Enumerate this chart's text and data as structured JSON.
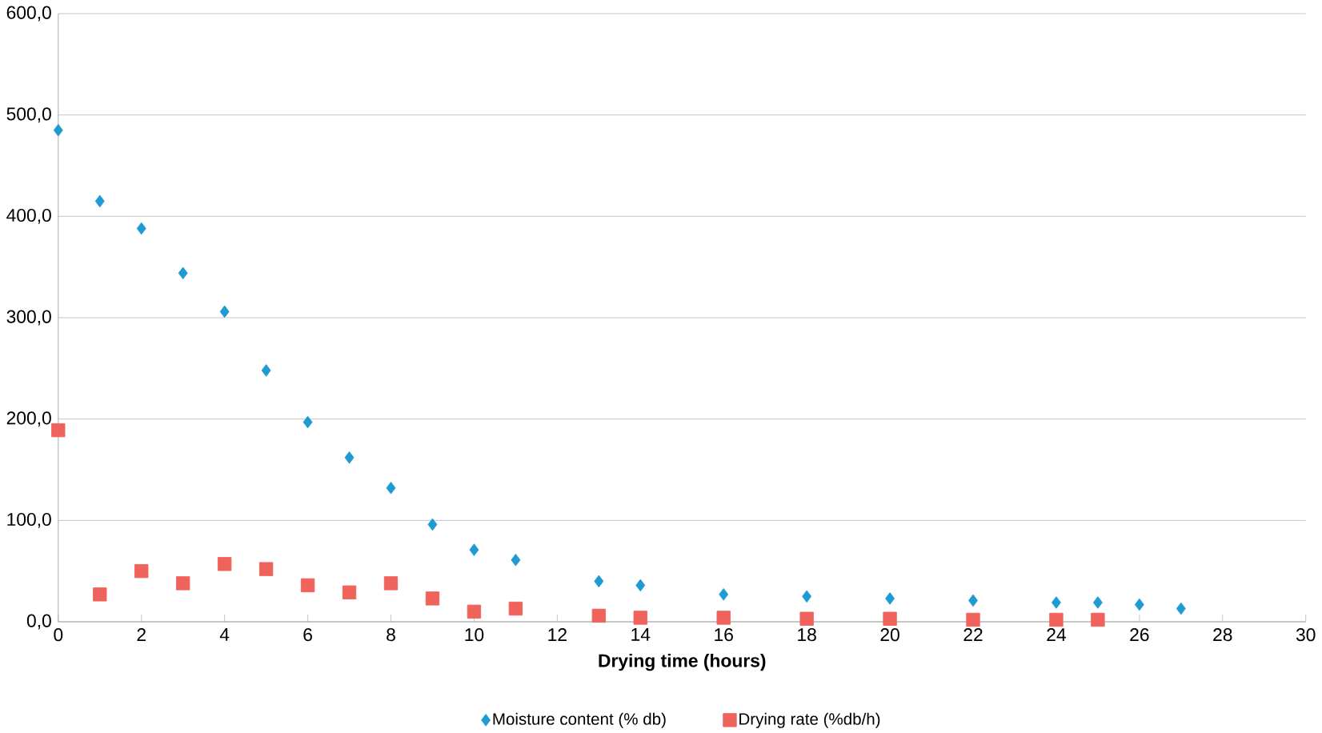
{
  "chart_data": {
    "type": "scatter",
    "xlabel": "Drying time (hours)",
    "xlim": [
      0,
      30
    ],
    "xticks": [
      0,
      2,
      4,
      6,
      8,
      10,
      12,
      14,
      16,
      18,
      20,
      22,
      24,
      26,
      28,
      30
    ],
    "ylim": [
      0,
      600
    ],
    "yticks": [
      {
        "value": 0,
        "label": "0,0"
      },
      {
        "value": 100,
        "label": "100,0"
      },
      {
        "value": 200,
        "label": "200,0"
      },
      {
        "value": 300,
        "label": "300,0"
      },
      {
        "value": 400,
        "label": "400,0"
      },
      {
        "value": 500,
        "label": "500,0"
      },
      {
        "value": 600,
        "label": "600,0"
      }
    ],
    "grid": "y",
    "legend": "bottom",
    "series": [
      {
        "name": "Moisture content (% db)",
        "color": "#1f9bd3",
        "marker": "diamond",
        "x": [
          0,
          1,
          2,
          3,
          4,
          5,
          6,
          7,
          8,
          9,
          10,
          11,
          13,
          14,
          16,
          18,
          20,
          22,
          24,
          25,
          26,
          27
        ],
        "values": [
          485,
          415,
          388,
          344,
          306,
          248,
          197,
          162,
          132,
          96,
          71,
          61,
          40,
          36,
          27,
          25,
          23,
          21,
          19,
          19,
          17,
          13
        ]
      },
      {
        "name": "Drying rate (%db/h)",
        "color": "#f0625c",
        "marker": "square",
        "x": [
          0,
          1,
          2,
          3,
          4,
          5,
          6,
          7,
          8,
          9,
          10,
          11,
          13,
          14,
          16,
          18,
          20,
          22,
          24,
          25
        ],
        "values": [
          189,
          27,
          50,
          38,
          57,
          52,
          36,
          29,
          38,
          23,
          10,
          13,
          6,
          4,
          4,
          3,
          3,
          2,
          2,
          2
        ]
      }
    ]
  }
}
